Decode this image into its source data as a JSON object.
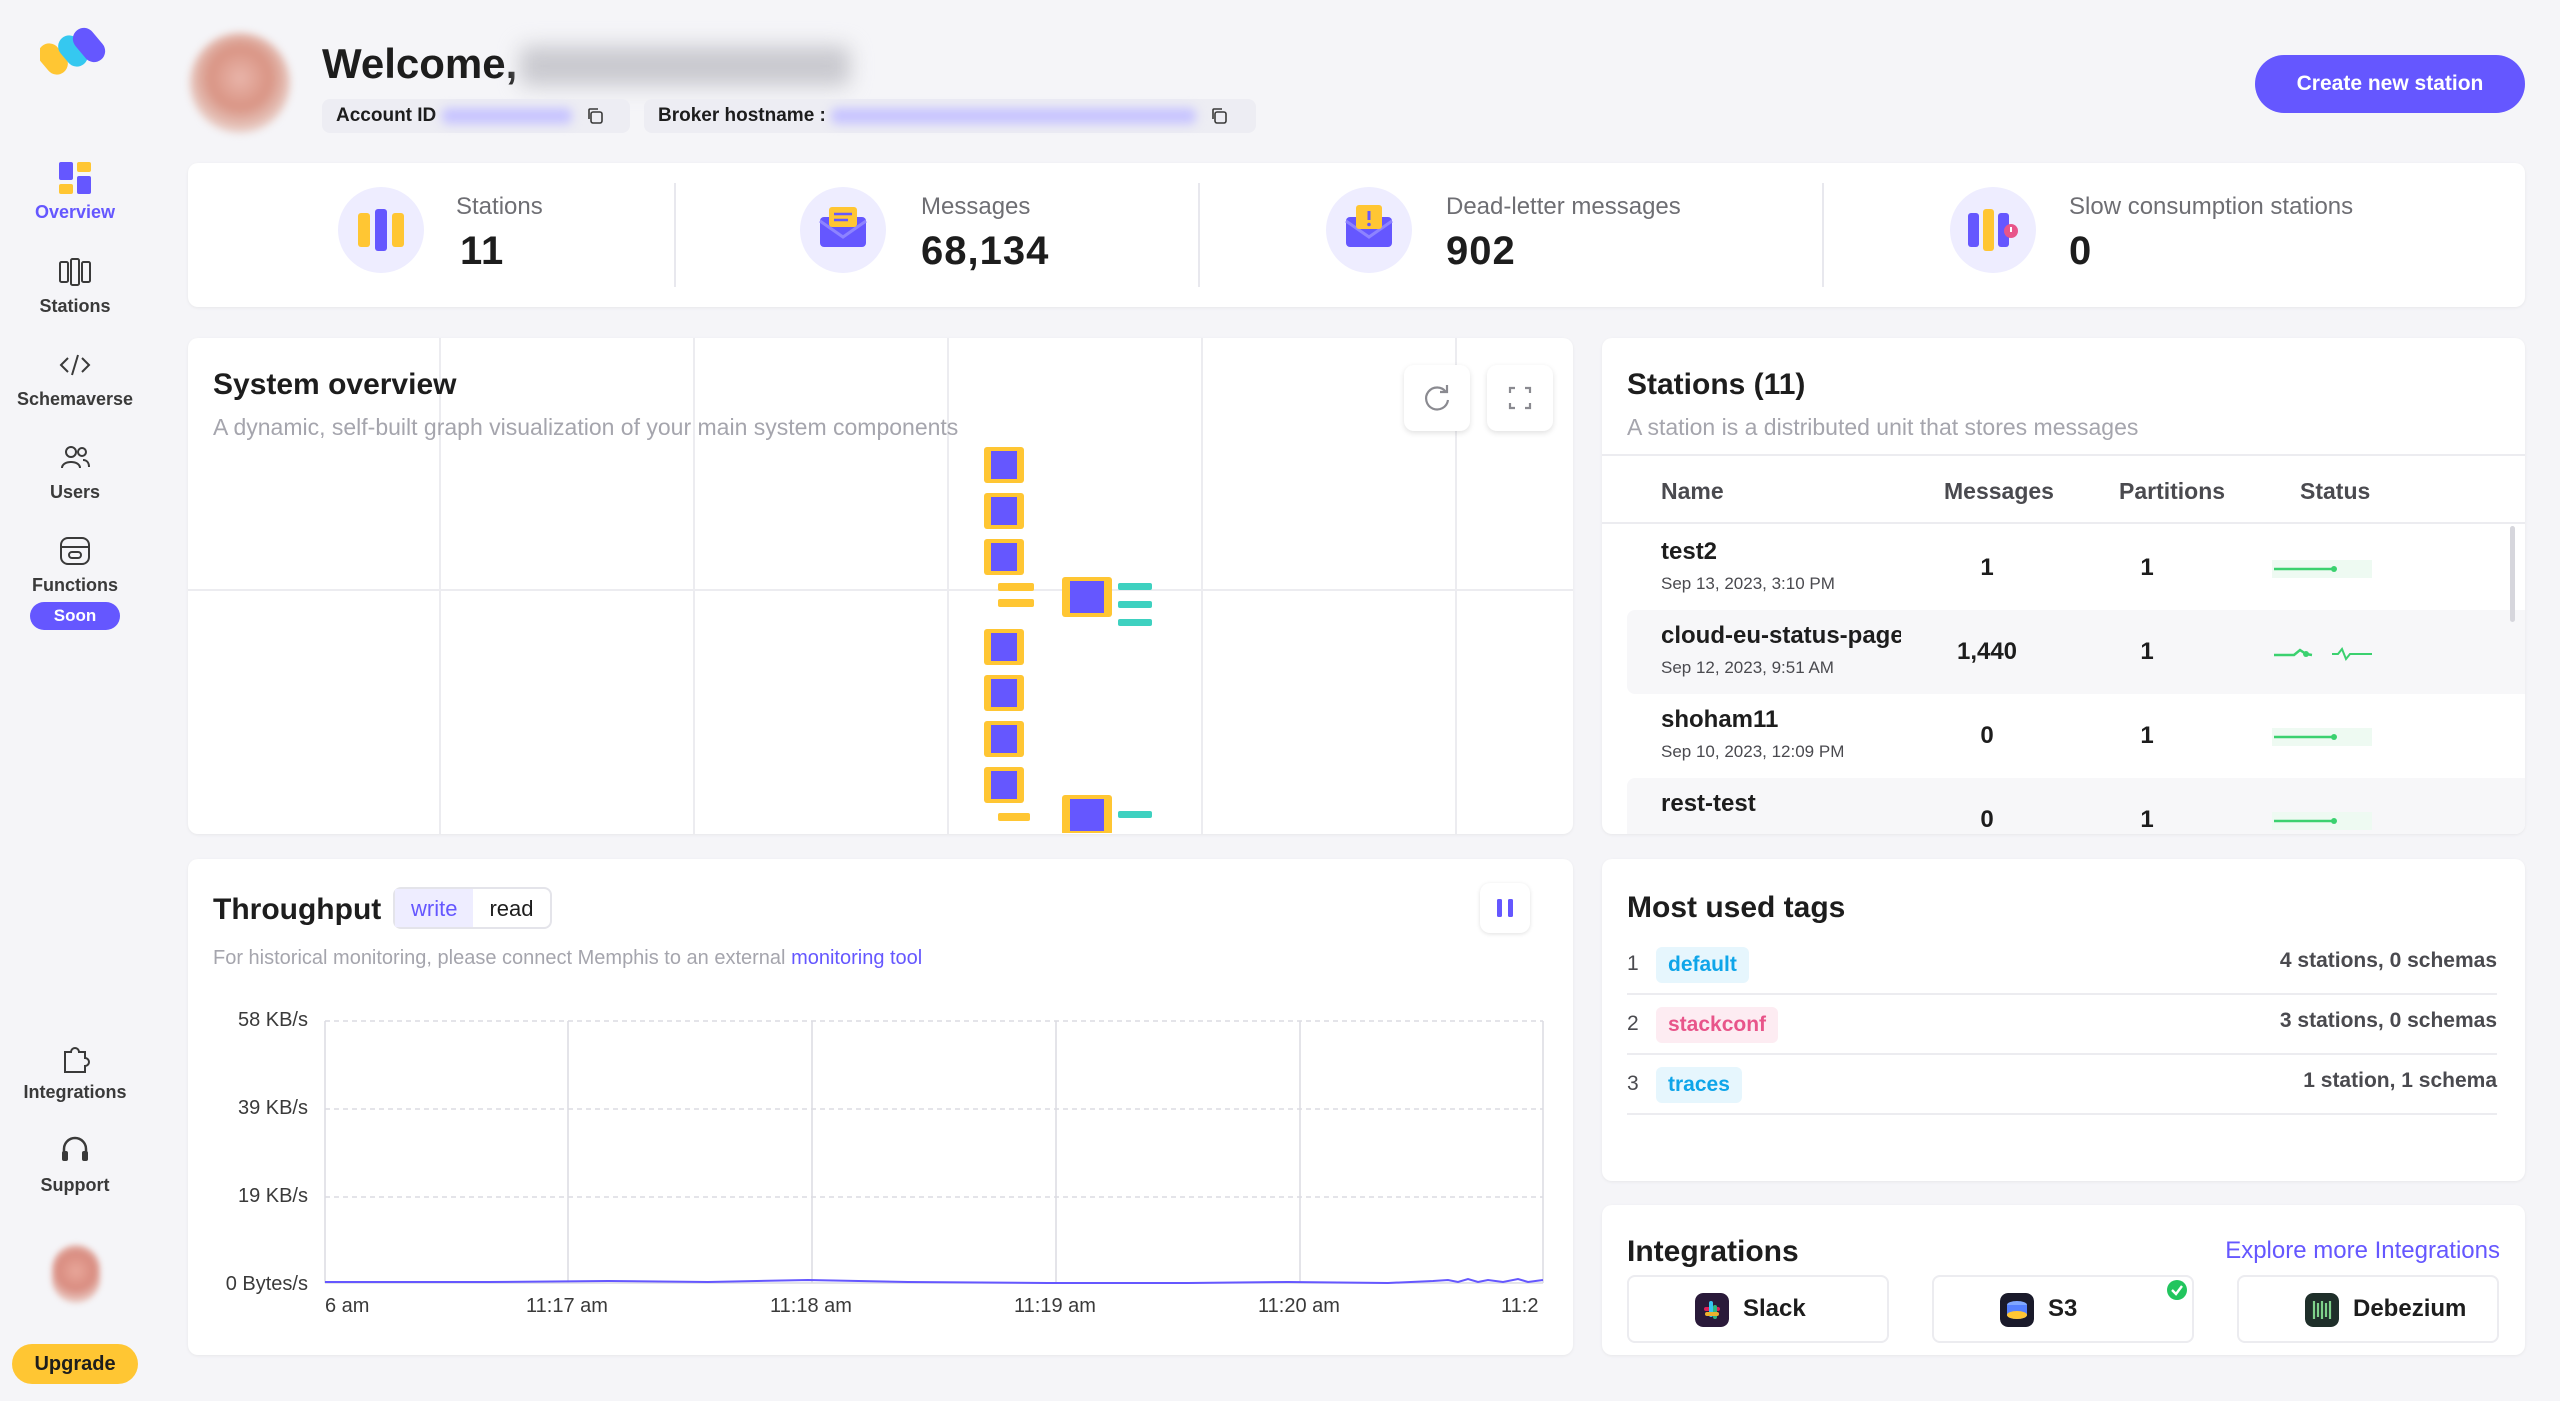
{
  "sidebar": {
    "items": [
      {
        "label": "Overview",
        "icon": "overview-icon"
      },
      {
        "label": "Stations",
        "icon": "stations-icon"
      },
      {
        "label": "Schemaverse",
        "icon": "code-icon"
      },
      {
        "label": "Users",
        "icon": "users-icon"
      },
      {
        "label": "Functions",
        "icon": "functions-icon",
        "badge": "Soon"
      }
    ],
    "bottom_items": [
      {
        "label": "Integrations",
        "icon": "puzzle-icon"
      },
      {
        "label": "Support",
        "icon": "headset-icon"
      }
    ],
    "upgrade_label": "Upgrade"
  },
  "header": {
    "welcome": "Welcome,",
    "account_label": "Account ID",
    "broker_label": "Broker hostname :",
    "create_button": "Create new station"
  },
  "stats": [
    {
      "label": "Stations",
      "value": "11"
    },
    {
      "label": "Messages",
      "value": "68,134"
    },
    {
      "label": "Dead-letter messages",
      "value": "902"
    },
    {
      "label": "Slow consumption stations",
      "value": "0"
    }
  ],
  "system_overview": {
    "title": "System overview",
    "subtitle": "A dynamic, self-built graph visualization of your main system components"
  },
  "stations_panel": {
    "title": "Stations (11)",
    "subtitle": "A station is a distributed unit that stores messages",
    "columns": [
      "Name",
      "Messages",
      "Partitions",
      "Status"
    ],
    "rows": [
      {
        "name": "test2",
        "date": "Sep 13, 2023, 3:10 PM",
        "messages": "1",
        "partitions": "1"
      },
      {
        "name": "cloud-eu-status-page",
        "date": "Sep 12, 2023, 9:51 AM",
        "messages": "1,440",
        "partitions": "1"
      },
      {
        "name": "shoham11",
        "date": "Sep 10, 2023, 12:09 PM",
        "messages": "0",
        "partitions": "1"
      },
      {
        "name": "rest-test",
        "date": "",
        "messages": "0",
        "partitions": "1"
      }
    ]
  },
  "throughput": {
    "title": "Throughput",
    "toggle": [
      "write",
      "read"
    ],
    "info": "For historical monitoring, please connect Memphis to an external",
    "info_link": "monitoring tool",
    "y_labels": [
      "58 KB/s",
      "39 KB/s",
      "19 KB/s",
      "0 Bytes/s"
    ],
    "x_labels": [
      "6 am",
      "11:17 am",
      "11:18 am",
      "11:19 am",
      "11:20 am",
      "11:2"
    ]
  },
  "tags": {
    "title": "Most used tags",
    "items": [
      {
        "index": "1",
        "name": "default",
        "count": "4 stations, 0 schemas",
        "color": "#0ea5e9",
        "bg": "#e6f6fd"
      },
      {
        "index": "2",
        "name": "stackconf",
        "count": "3 stations, 0 schemas",
        "color": "#e8558a",
        "bg": "#fdecf2"
      },
      {
        "index": "3",
        "name": "traces",
        "count": "1 station, 1 schema",
        "color": "#0ea5e9",
        "bg": "#e6f6fd"
      }
    ]
  },
  "integrations": {
    "title": "Integrations",
    "explore": "Explore more Integrations",
    "items": [
      {
        "label": "Slack",
        "icon": "slack-icon"
      },
      {
        "label": "S3",
        "icon": "s3-icon",
        "connected": true
      },
      {
        "label": "Debezium",
        "icon": "debezium-icon"
      }
    ]
  },
  "colors": {
    "accent": "#6557ff",
    "upgrade": "#ffc633",
    "status_green": "#3bd16f"
  }
}
